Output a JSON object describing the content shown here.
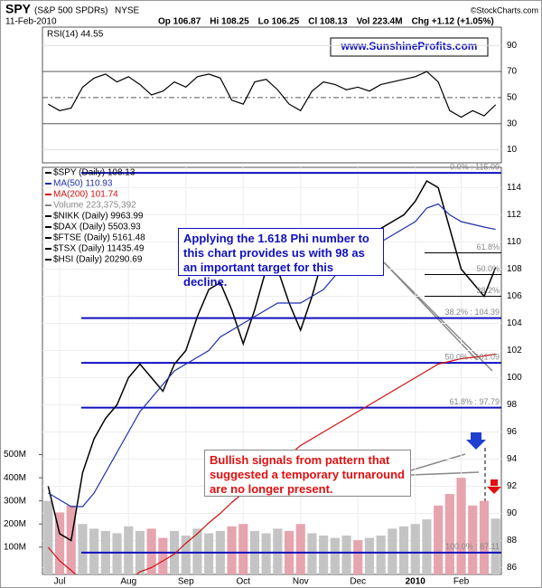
{
  "chart_data": {
    "type": "stock",
    "symbol": "SPY",
    "name": "(S&P 500 SPDRs)",
    "exchange": "NYSE",
    "date": "11-Feb-2010",
    "quote": [
      "Op 106.87",
      "Hi 108.25",
      "Lo 106.25",
      "Cl 108.13",
      "Vol 223.4M",
      "Chg +1.12 (+1.05%)"
    ],
    "credit": "©StockCharts.com",
    "website": "www.SunshineProfits.com",
    "rsi_label": "RSI(14) 44.55",
    "categories": [
      null,
      "Jul",
      null,
      null,
      null,
      null,
      null,
      "Aug",
      null,
      null,
      null,
      null,
      "Sep",
      null,
      null,
      null,
      null,
      "Oct",
      null,
      null,
      null,
      null,
      "Nov",
      null,
      null,
      null,
      null,
      "Dec",
      null,
      null,
      null,
      null,
      "2010",
      null,
      null,
      null,
      "Feb",
      null,
      null,
      null
    ],
    "rsi": {
      "values": [
        45,
        40,
        42,
        58,
        65,
        68,
        62,
        66,
        60,
        52,
        55,
        62,
        58,
        66,
        68,
        65,
        48,
        45,
        62,
        64,
        56,
        45,
        40,
        55,
        62,
        60,
        56,
        58,
        55,
        60,
        62,
        64,
        66,
        70,
        62,
        40,
        35,
        40,
        36,
        44.55
      ],
      "color": "#000000",
      "ylim": [
        0,
        104
      ],
      "yticks": [
        10,
        30,
        50,
        70,
        90
      ]
    },
    "legend": [
      "$SPY (Daily) 108.13",
      "MA(50) 110.93",
      "MA(200) 101.74",
      "Volume 223,375,392",
      "$NIKK (Daily) 9963.99",
      "$DAX (Daily) 5503.93",
      "$FTSE (Daily) 5161.48",
      "$TSX (Daily) 11435.49",
      "$HSI (Daily) 20290.69"
    ],
    "legend_colors": [
      "#000000",
      "#1f2fa8",
      "#d01010",
      "#888888",
      "#000000",
      "#000000",
      "#000000",
      "#000000",
      "#000000"
    ],
    "series": [
      {
        "name": "$SPY",
        "color": "#000000",
        "values": [
          92,
          88.5,
          88,
          93,
          95.5,
          97,
          98,
          100,
          101,
          100,
          99,
          101,
          102,
          104.5,
          106.5,
          107,
          105,
          102.5,
          105,
          108,
          108,
          105.5,
          103.5,
          106,
          109,
          110,
          110.5,
          110,
          110,
          111,
          111.5,
          112,
          113,
          114.5,
          114,
          111,
          108,
          107,
          106,
          108.13
        ]
      },
      {
        "name": "MA(50)",
        "color": "#1f2fa8",
        "values": [
          91.5,
          91,
          90.5,
          90.5,
          91.5,
          93,
          94.5,
          96,
          97.5,
          98.5,
          99.5,
          100.5,
          101,
          101.5,
          102,
          103,
          103.5,
          104,
          104.5,
          105,
          105.5,
          105.5,
          105.5,
          106,
          106.5,
          107.5,
          108.5,
          109,
          109.5,
          110,
          110.5,
          111,
          111.5,
          112.5,
          112.8,
          112,
          111.5,
          111.3,
          111.1,
          110.93
        ]
      },
      {
        "name": "MA(200)",
        "color": "#d01010",
        "values": [
          87.5,
          86.5,
          85.8,
          85,
          84.5,
          84.3,
          84.5,
          85,
          85.7,
          86,
          86.5,
          87,
          87.8,
          88.5,
          89.3,
          90,
          90.8,
          91.5,
          92.3,
          93,
          93.6,
          94.3,
          95,
          95.5,
          96,
          96.5,
          97,
          97.5,
          98,
          98.5,
          99,
          99.5,
          100,
          100.5,
          101,
          101.2,
          101.4,
          101.5,
          101.6,
          101.74
        ]
      }
    ],
    "ylim": [
      85.5,
      115.5
    ],
    "yticks": [
      86,
      88,
      90,
      92,
      94,
      96,
      98,
      100,
      102,
      104,
      106,
      108,
      110,
      112,
      114
    ],
    "volume": {
      "values": [
        300,
        250,
        280,
        200,
        180,
        170,
        160,
        190,
        170,
        180,
        140,
        170,
        150,
        180,
        160,
        170,
        190,
        200,
        170,
        160,
        180,
        170,
        200,
        160,
        150,
        140,
        150,
        130,
        140,
        150,
        180,
        190,
        200,
        220,
        280,
        330,
        400,
        280,
        300,
        223.4
      ],
      "up_color": "#c4c4c4",
      "down_color": "#e6a4ae",
      "ylim": [
        -18,
        510
      ],
      "yticks": [
        {
          "value": 100,
          "label": "100M"
        },
        {
          "value": 200,
          "label": "200M"
        },
        {
          "value": 300,
          "label": "300M"
        },
        {
          "value": 400,
          "label": "400M"
        },
        {
          "value": 500,
          "label": "500M"
        }
      ]
    },
    "fib_levels": [
      {
        "label": "0.0% : 115.09",
        "value": 115.09
      },
      {
        "label": "38.2% : 104.39",
        "value": 104.39
      },
      {
        "label": "50.0% : 101.09",
        "value": 101.09
      },
      {
        "label": "61.8% : 97.79",
        "value": 97.79
      },
      {
        "label": "100.0% : 87.11",
        "value": 87.11
      }
    ],
    "fib_color": "#1010c0",
    "short_fib_levels": [
      {
        "label": "61.8%",
        "value": 109.2
      },
      {
        "label": "50.0%",
        "value": 107.6
      },
      {
        "label": "38.2%",
        "value": 106.0
      }
    ],
    "annotations": [
      "Applying the 1.618 Phi number to this chart provides us with 98 as an important target for this decline.",
      "Bullish signals from pattern that suggested a temporary turnaround are no longer present."
    ]
  }
}
